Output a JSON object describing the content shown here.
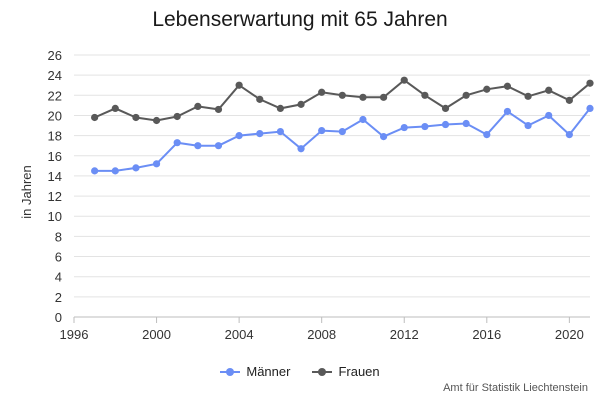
{
  "chart_data": {
    "type": "line",
    "title": "Lebenserwartung mit 65 Jahren",
    "xlabel": "",
    "ylabel": "in Jahren",
    "xlim": [
      1996,
      2021
    ],
    "ylim": [
      0,
      26
    ],
    "xticks": [
      1996,
      2000,
      2004,
      2008,
      2012,
      2016,
      2020
    ],
    "yticks": [
      0,
      2,
      4,
      6,
      8,
      10,
      12,
      14,
      16,
      18,
      20,
      22,
      24,
      26
    ],
    "grid": true,
    "legend_position": "bottom",
    "x": [
      1997,
      1998,
      1999,
      2000,
      2001,
      2002,
      2003,
      2004,
      2005,
      2006,
      2007,
      2008,
      2009,
      2010,
      2011,
      2012,
      2013,
      2014,
      2015,
      2016,
      2017,
      2018,
      2019,
      2020,
      2021
    ],
    "series": [
      {
        "name": "Männer",
        "color": "#6b8ef5",
        "values": [
          14.5,
          14.5,
          14.8,
          15.2,
          17.3,
          17.0,
          17.0,
          18.0,
          18.2,
          18.4,
          16.7,
          18.5,
          18.4,
          19.6,
          17.9,
          18.8,
          18.9,
          19.1,
          19.2,
          18.1,
          20.4,
          19.0,
          20.0,
          18.1,
          20.7
        ]
      },
      {
        "name": "Frauen",
        "color": "#595959",
        "values": [
          19.8,
          20.7,
          19.8,
          19.5,
          19.9,
          20.9,
          20.6,
          23.0,
          21.6,
          20.7,
          21.1,
          22.3,
          22.0,
          21.8,
          21.8,
          23.5,
          22.0,
          20.7,
          22.0,
          22.6,
          22.9,
          21.9,
          22.5,
          21.5,
          23.2
        ]
      }
    ]
  },
  "source": "Amt für Statistik Liechtenstein"
}
